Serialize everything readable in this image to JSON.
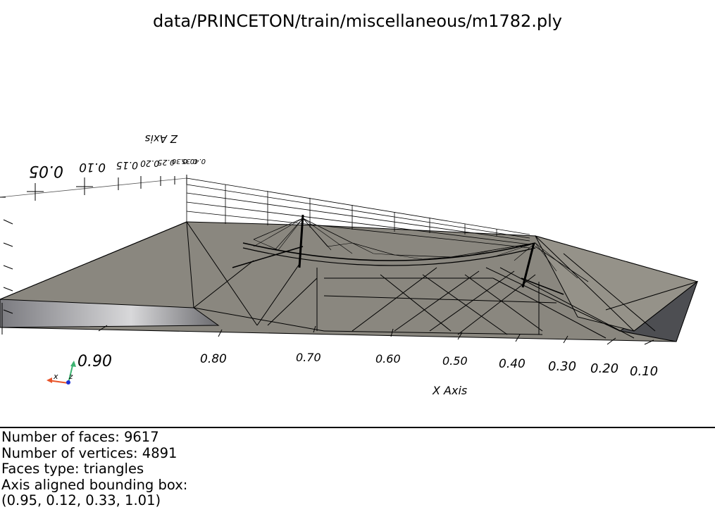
{
  "title": "data/PRINCETON/train/miscellaneous/m1782.ply",
  "axes": {
    "x_axis_label": "X Axis",
    "z_axis_label": "Z Axis",
    "x_ticks": [
      "0.90",
      "0.80",
      "0.70",
      "0.60",
      "0.50",
      "0.40",
      "0.30",
      "0.20",
      "0.10"
    ],
    "z_ticks": [
      "0.05",
      "0.10",
      "0.15",
      "0.20",
      "0.25",
      "0.30",
      "0.35",
      "0.40"
    ]
  },
  "orientation_widget": {
    "x": "x",
    "z": "z"
  },
  "info": {
    "faces": "Number of faces: 9617",
    "vertices": "Number of vertices: 4891",
    "faces_type": "Faces type: triangles",
    "bbox_label": "Axis aligned bounding box:",
    "bbox_value": "(0.95, 0.12, 0.33, 1.01)"
  },
  "colors": {
    "mesh_fill": "#8a877f",
    "mesh_shadow": "#4a4b4f",
    "edge": "#000000",
    "orient_x": "#e8552b",
    "orient_y": "#3cb371",
    "orient_z": "#1c2fd6"
  }
}
